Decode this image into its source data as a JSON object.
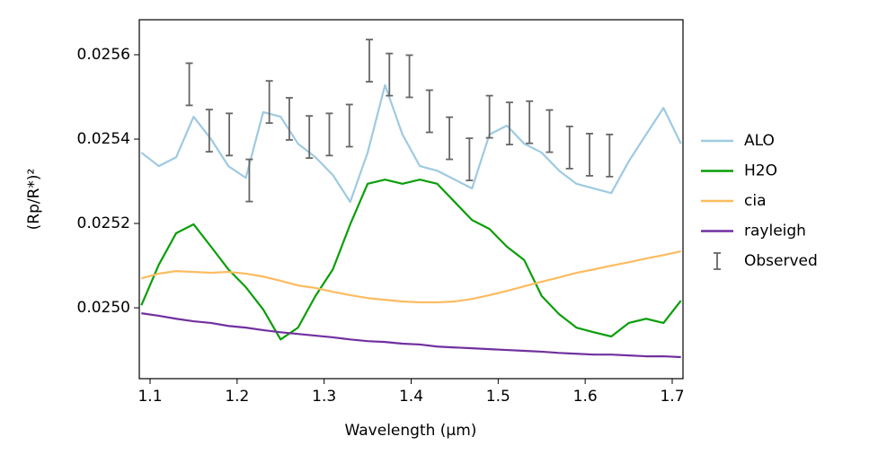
{
  "chart_data": {
    "type": "line",
    "xlabel": "Wavelength (μm)",
    "ylabel": "(Rp/R*)²",
    "xlim": [
      1.0876,
      1.7124
    ],
    "ylim": [
      0.024832,
      0.025683
    ],
    "xticks": [
      1.1,
      1.2,
      1.3,
      1.4,
      1.5,
      1.6,
      1.7
    ],
    "yticks": [
      {
        "value": 0.025,
        "label": "0.0250"
      },
      {
        "value": 0.0252,
        "label": "0.0252"
      },
      {
        "value": 0.0254,
        "label": "0.0254"
      },
      {
        "value": 0.0256,
        "label": "0.0256"
      }
    ],
    "legend": "right",
    "x": [
      1.09,
      1.11,
      1.13,
      1.15,
      1.17,
      1.19,
      1.21,
      1.23,
      1.25,
      1.27,
      1.29,
      1.31,
      1.33,
      1.35,
      1.37,
      1.39,
      1.41,
      1.43,
      1.45,
      1.47,
      1.49,
      1.51,
      1.53,
      1.55,
      1.57,
      1.59,
      1.61,
      1.63,
      1.65,
      1.67,
      1.69,
      1.71
    ],
    "series": [
      {
        "name": "ALO",
        "color": "#9ecae1",
        "values": [
          0.025368,
          0.025336,
          0.025357,
          0.025453,
          0.0254,
          0.025336,
          0.025308,
          0.025464,
          0.025453,
          0.025389,
          0.025357,
          0.025315,
          0.025251,
          0.025368,
          0.025528,
          0.025411,
          0.025336,
          0.025325,
          0.025304,
          0.025283,
          0.025411,
          0.025432,
          0.025389,
          0.025368,
          0.025325,
          0.025294,
          0.025283,
          0.025272,
          0.025347,
          0.025411,
          0.025474,
          0.025389
        ]
      },
      {
        "name": "H2O",
        "color": "#0a9e0a",
        "values": [
          0.025006,
          0.025102,
          0.025177,
          0.025198,
          0.025145,
          0.025091,
          0.025049,
          0.024996,
          0.024925,
          0.024953,
          0.025028,
          0.025091,
          0.025198,
          0.025294,
          0.025304,
          0.025294,
          0.025304,
          0.025294,
          0.025251,
          0.025208,
          0.025187,
          0.025145,
          0.025113,
          0.025028,
          0.024985,
          0.024953,
          0.024942,
          0.024932,
          0.024964,
          0.024974,
          0.024964,
          0.025017
        ]
      },
      {
        "name": "cia",
        "color": "#fdbb5f",
        "values": [
          0.02507,
          0.025081,
          0.025087,
          0.025085,
          0.025083,
          0.025085,
          0.025081,
          0.025074,
          0.025064,
          0.025053,
          0.025047,
          0.025038,
          0.02503,
          0.025023,
          0.025019,
          0.025015,
          0.025013,
          0.025013,
          0.025015,
          0.025021,
          0.02503,
          0.02504,
          0.025051,
          0.025062,
          0.025072,
          0.025083,
          0.025091,
          0.0251,
          0.025108,
          0.025117,
          0.025125,
          0.025134
        ]
      },
      {
        "name": "rayleigh",
        "color": "#7030a0",
        "values": [
          0.024987,
          0.024981,
          0.024974,
          0.024968,
          0.024964,
          0.024957,
          0.024953,
          0.024947,
          0.024942,
          0.024938,
          0.024934,
          0.02493,
          0.024925,
          0.024921,
          0.024919,
          0.024915,
          0.024913,
          0.024908,
          0.024906,
          0.024904,
          0.024902,
          0.0249,
          0.024898,
          0.024896,
          0.024893,
          0.024891,
          0.024889,
          0.024889,
          0.024887,
          0.024885,
          0.024885,
          0.024883
        ]
      }
    ],
    "observed": {
      "name": "Observed",
      "color": "#666666",
      "x": [
        1.145,
        1.168,
        1.191,
        1.214,
        1.237,
        1.26,
        1.283,
        1.306,
        1.329,
        1.352,
        1.375,
        1.398,
        1.421,
        1.444,
        1.467,
        1.49,
        1.513,
        1.536,
        1.559,
        1.582,
        1.605,
        1.628
      ],
      "values": [
        0.02553,
        0.02542,
        0.025411,
        0.025302,
        0.025488,
        0.025448,
        0.025405,
        0.025411,
        0.025432,
        0.025586,
        0.025553,
        0.025549,
        0.025466,
        0.025402,
        0.025352,
        0.025453,
        0.025437,
        0.02544,
        0.025419,
        0.02538,
        0.025363,
        0.025361
      ],
      "errors": [
        5e-05,
        5e-05,
        5e-05,
        5e-05,
        5e-05,
        5e-05,
        5e-05,
        5e-05,
        5e-05,
        5e-05,
        5e-05,
        5e-05,
        5e-05,
        5e-05,
        5e-05,
        5e-05,
        5e-05,
        5e-05,
        5e-05,
        5e-05,
        5e-05,
        5e-05
      ]
    }
  }
}
